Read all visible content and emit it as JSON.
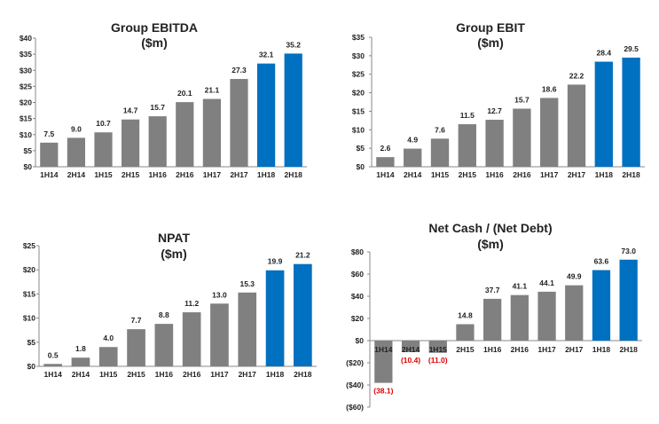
{
  "colors": {
    "gray_bar": "#808080",
    "blue_bar": "#0070C0",
    "label": "#222222",
    "negative_label": "#E00000",
    "axis": "#888888"
  },
  "chart_data": [
    {
      "type": "bar",
      "title": "Group EBITDA",
      "subtitle": "($m)",
      "categories": [
        "1H14",
        "2H14",
        "1H15",
        "2H15",
        "1H16",
        "2H16",
        "1H17",
        "2H17",
        "1H18",
        "2H18"
      ],
      "values": [
        7.5,
        9.0,
        10.7,
        14.7,
        15.7,
        20.1,
        21.1,
        27.3,
        32.1,
        35.2
      ],
      "value_labels": [
        "7.5",
        "9.0",
        "10.7",
        "14.7",
        "15.7",
        "20.1",
        "21.1",
        "27.3",
        "32.1",
        "35.2"
      ],
      "highlight": [
        8,
        9
      ],
      "ylim": [
        0,
        40
      ],
      "yticks": [
        0,
        5,
        10,
        15,
        20,
        25,
        30,
        35,
        40
      ],
      "ytick_labels": [
        "$0",
        "$5",
        "$10",
        "$15",
        "$20",
        "$25",
        "$30",
        "$35",
        "$40"
      ]
    },
    {
      "type": "bar",
      "title": "Group EBIT",
      "subtitle": "($m)",
      "categories": [
        "1H14",
        "2H14",
        "1H15",
        "2H15",
        "1H16",
        "2H16",
        "1H17",
        "2H17",
        "1H18",
        "2H18"
      ],
      "values": [
        2.6,
        4.9,
        7.6,
        11.5,
        12.7,
        15.7,
        18.6,
        22.2,
        28.4,
        29.5
      ],
      "value_labels": [
        "2.6",
        "4.9",
        "7.6",
        "11.5",
        "12.7",
        "15.7",
        "18.6",
        "22.2",
        "28.4",
        "29.5"
      ],
      "highlight": [
        8,
        9
      ],
      "ylim": [
        0,
        35
      ],
      "yticks": [
        0,
        5,
        10,
        15,
        20,
        25,
        30,
        35
      ],
      "ytick_labels": [
        "$0",
        "$5",
        "$10",
        "$15",
        "$20",
        "$25",
        "$30",
        "$35"
      ]
    },
    {
      "type": "bar",
      "title": "NPAT",
      "subtitle": "($m)",
      "categories": [
        "1H14",
        "2H14",
        "1H15",
        "2H15",
        "1H16",
        "2H16",
        "1H17",
        "2H17",
        "1H18",
        "2H18"
      ],
      "values": [
        0.5,
        1.8,
        4.0,
        7.7,
        8.8,
        11.2,
        13.0,
        15.3,
        19.9,
        21.2
      ],
      "value_labels": [
        "0.5",
        "1.8",
        "4.0",
        "7.7",
        "8.8",
        "11.2",
        "13.0",
        "15.3",
        "19.9",
        "21.2"
      ],
      "highlight": [
        8,
        9
      ],
      "ylim": [
        0,
        25
      ],
      "yticks": [
        0,
        5,
        10,
        15,
        20,
        25
      ],
      "ytick_labels": [
        "$0",
        "$5",
        "$10",
        "$15",
        "$20",
        "$25"
      ]
    },
    {
      "type": "bar",
      "title": "Net Cash / (Net Debt)",
      "subtitle": "($m)",
      "categories": [
        "1H14",
        "2H14",
        "1H15",
        "2H15",
        "1H16",
        "2H16",
        "1H17",
        "2H17",
        "1H18",
        "2H18"
      ],
      "values": [
        -38.1,
        -10.4,
        -11.0,
        14.8,
        37.7,
        41.1,
        44.1,
        49.9,
        63.6,
        73.0
      ],
      "value_labels": [
        "(38.1)",
        "(10.4)",
        "(11.0)",
        "14.8",
        "37.7",
        "41.1",
        "44.1",
        "49.9",
        "63.6",
        "73.0"
      ],
      "highlight": [
        8,
        9
      ],
      "ylim": [
        -60,
        80
      ],
      "yticks": [
        -60,
        -40,
        -20,
        0,
        20,
        40,
        60,
        80
      ],
      "ytick_labels": [
        "($60)",
        "($40)",
        "($20)",
        "$0",
        "$20",
        "$40",
        "$60",
        "$80"
      ]
    }
  ]
}
